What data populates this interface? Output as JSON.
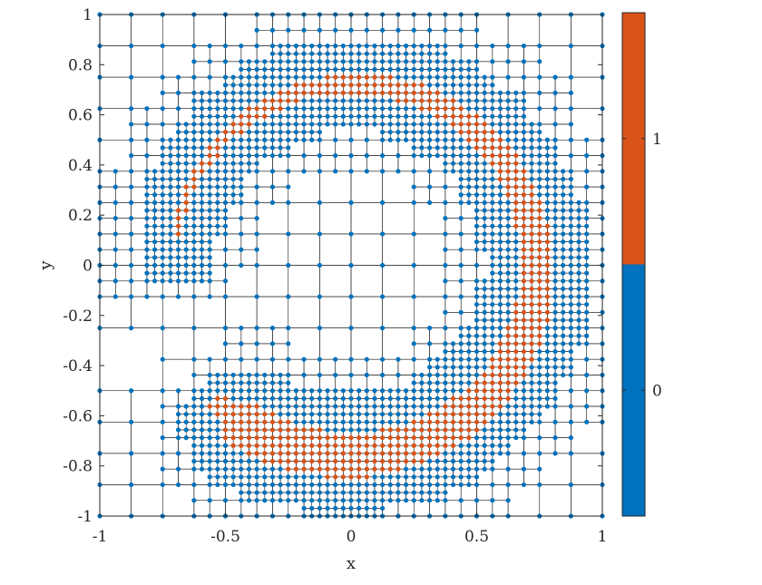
{
  "chart_data": {
    "type": "scatter",
    "title": "",
    "xlabel": "x",
    "ylabel": "y",
    "xlim": [
      -1,
      1
    ],
    "ylim": [
      -1,
      1
    ],
    "x_ticks": [
      -1,
      -0.5,
      0,
      0.5,
      1
    ],
    "x_tick_labels": [
      "-1",
      "-0.5",
      "0",
      "0.5",
      "1"
    ],
    "y_ticks": [
      -1,
      -0.8,
      -0.6,
      -0.4,
      -0.2,
      0,
      0.2,
      0.4,
      0.6,
      0.8,
      1
    ],
    "y_tick_labels": [
      "-1",
      "-0.8",
      "-0.6",
      "-0.4",
      "-0.2",
      "0",
      "0.2",
      "0.4",
      "0.6",
      "0.8",
      "1"
    ],
    "grid": "adaptive quadtree mesh, finest cells along a spiral band",
    "spiral_band": {
      "center": [
        0,
        0
      ],
      "start_angle_deg": -135,
      "end_angle_deg": 180,
      "inner_radius_start": 0.66,
      "inner_radius_end": 0.69,
      "outer_radius_start": 0.87,
      "outer_radius_end": 0.72,
      "refinement_levels": 6
    },
    "colorbar": {
      "ticks": [
        0,
        1
      ],
      "tick_labels": [
        "0",
        "1"
      ],
      "colors": [
        "#0072BD",
        "#D95319"
      ]
    },
    "series": [
      {
        "value": 0,
        "color": "#0072BD"
      },
      {
        "value": 1,
        "color": "#D95319"
      }
    ]
  }
}
